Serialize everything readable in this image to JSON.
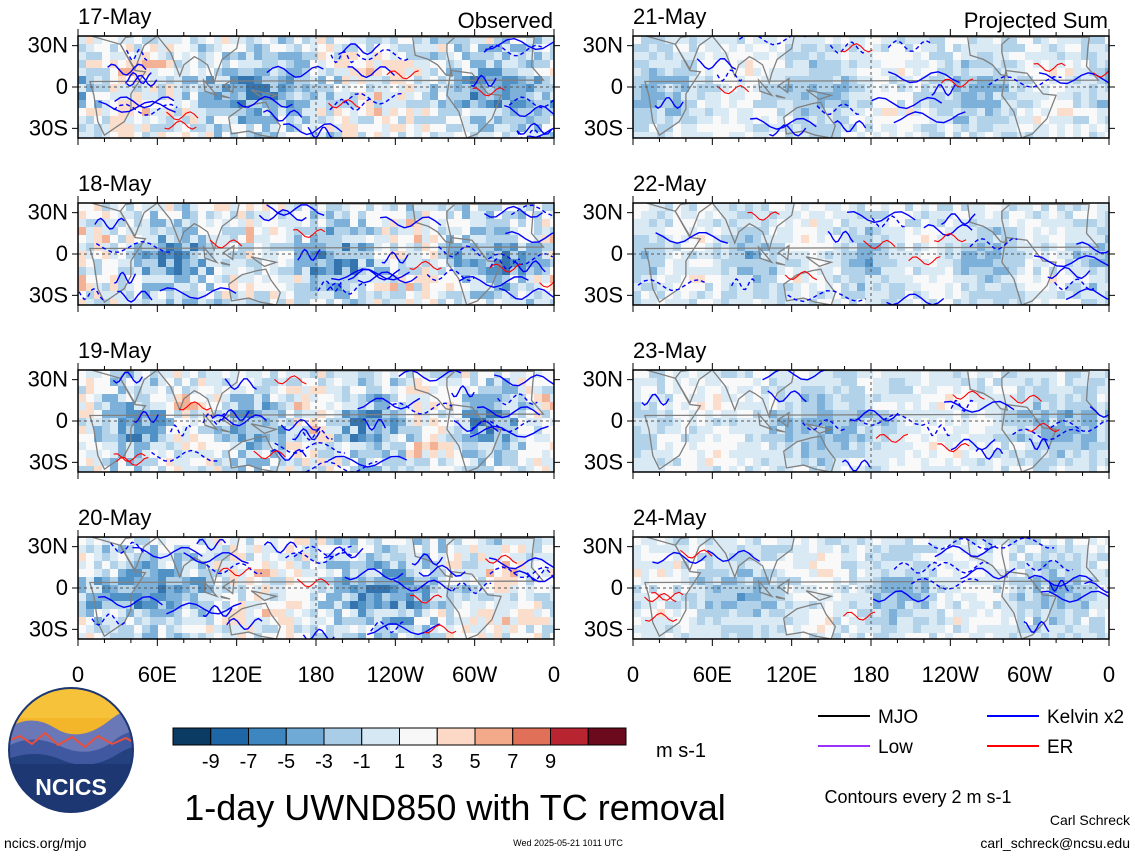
{
  "chart_data": {
    "type": "heatmap",
    "title": "1-day UWND850 with TC removal",
    "column_labels": {
      "left": "Observed",
      "right": "Projected Sum"
    },
    "panels": [
      {
        "date": "17-May",
        "column": "Observed"
      },
      {
        "date": "18-May",
        "column": "Observed"
      },
      {
        "date": "19-May",
        "column": "Observed"
      },
      {
        "date": "20-May",
        "column": "Observed"
      },
      {
        "date": "21-May",
        "column": "Projected Sum"
      },
      {
        "date": "22-May",
        "column": "Projected Sum"
      },
      {
        "date": "23-May",
        "column": "Projected Sum"
      },
      {
        "date": "24-May",
        "column": "Projected Sum"
      }
    ],
    "x_ticks": [
      {
        "lon": 0,
        "label": "0"
      },
      {
        "lon": 60,
        "label": "60E"
      },
      {
        "lon": 120,
        "label": "120E"
      },
      {
        "lon": 180,
        "label": "180"
      },
      {
        "lon": 240,
        "label": "120W"
      },
      {
        "lon": 300,
        "label": "60W"
      },
      {
        "lon": 360,
        "label": "0"
      }
    ],
    "y_ticks": [
      {
        "lat": 30,
        "label": "30N"
      },
      {
        "lat": 0,
        "label": "0"
      },
      {
        "lat": -30,
        "label": "30S"
      }
    ],
    "xlim": [
      0,
      360
    ],
    "ylim": [
      -37,
      37
    ],
    "colorbar": {
      "levels": [
        -9,
        -7,
        -5,
        -3,
        -1,
        1,
        3,
        5,
        7,
        9
      ],
      "labels": [
        "-9",
        "-7",
        "-5",
        "-3",
        "-1",
        "1",
        "3",
        "5",
        "7",
        "9"
      ],
      "colors": [
        "#0b3a63",
        "#1f66a6",
        "#3d86c0",
        "#6fa9d6",
        "#a9cde6",
        "#d6e8f4",
        "#f8f8f8",
        "#fbd9c6",
        "#f2aa8a",
        "#e07058",
        "#b82430",
        "#6b0a1c"
      ],
      "units": "m s-1"
    },
    "contour_note": "Contours every 2 m s-1",
    "legend": [
      {
        "label": "MJO",
        "color": "#000000"
      },
      {
        "label": "Kelvin x2",
        "color": "#0000ff"
      },
      {
        "label": "Low",
        "color": "#9b30ff"
      },
      {
        "label": "ER",
        "color": "#ff0000"
      }
    ]
  },
  "logo": {
    "text": "NCICS"
  },
  "footer": {
    "site": "ncics.org/mjo",
    "timestamp": "Wed 2025-05-21 1011 UTC",
    "author": "Carl Schreck",
    "email": "carl_schreck@ncsu.edu"
  }
}
